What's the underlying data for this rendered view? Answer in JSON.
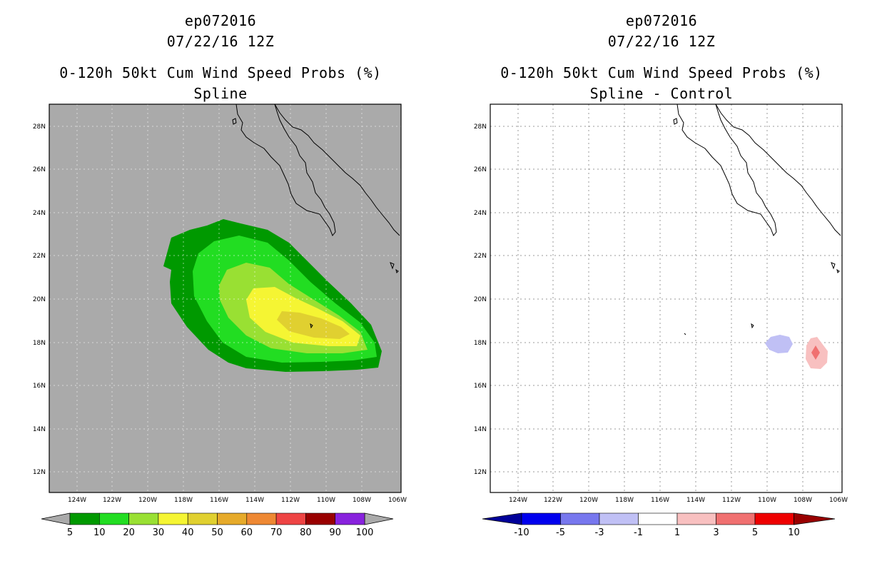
{
  "left": {
    "title_line1": "ep072016",
    "title_line2": "07/22/16 12Z",
    "title_line3": "0-120h 50kt Cum Wind Speed Probs (%)",
    "title_line4": "Spline",
    "lat_labels": [
      "28N",
      "26N",
      "24N",
      "22N",
      "20N",
      "18N",
      "16N",
      "14N",
      "12N"
    ],
    "lon_labels": [
      "124W",
      "122W",
      "120W",
      "118W",
      "116W",
      "114W",
      "112W",
      "110W",
      "108W",
      "106W"
    ],
    "colorbar": {
      "labels": [
        "5",
        "10",
        "20",
        "30",
        "40",
        "50",
        "60",
        "70",
        "80",
        "90",
        "100"
      ],
      "colors": [
        "#009900",
        "#22dd22",
        "#99e033",
        "#f5f533",
        "#e0d030",
        "#e6aa2a",
        "#ee8833",
        "#ee4444",
        "#990000",
        "#8822dd"
      ]
    },
    "background_color": "#aaaaaa"
  },
  "right": {
    "title_line1": "ep072016",
    "title_line2": "07/22/16 12Z",
    "title_line3": "0-120h 50kt Cum Wind Speed Probs (%)",
    "title_line4": "Spline - Control",
    "lat_labels": [
      "28N",
      "26N",
      "24N",
      "22N",
      "20N",
      "18N",
      "16N",
      "14N",
      "12N"
    ],
    "lon_labels": [
      "124W",
      "122W",
      "120W",
      "118W",
      "116W",
      "114W",
      "112W",
      "110W",
      "108W",
      "106W"
    ],
    "colorbar": {
      "labels": [
        "-10",
        "-5",
        "-3",
        "-1",
        "1",
        "3",
        "5",
        "10"
      ],
      "colors": [
        "#000099",
        "#0000ee",
        "#7777ee",
        "#c0c0f5",
        "#ffffff",
        "#f8c0c0",
        "#f07070",
        "#ee0000",
        "#990000"
      ]
    }
  }
}
